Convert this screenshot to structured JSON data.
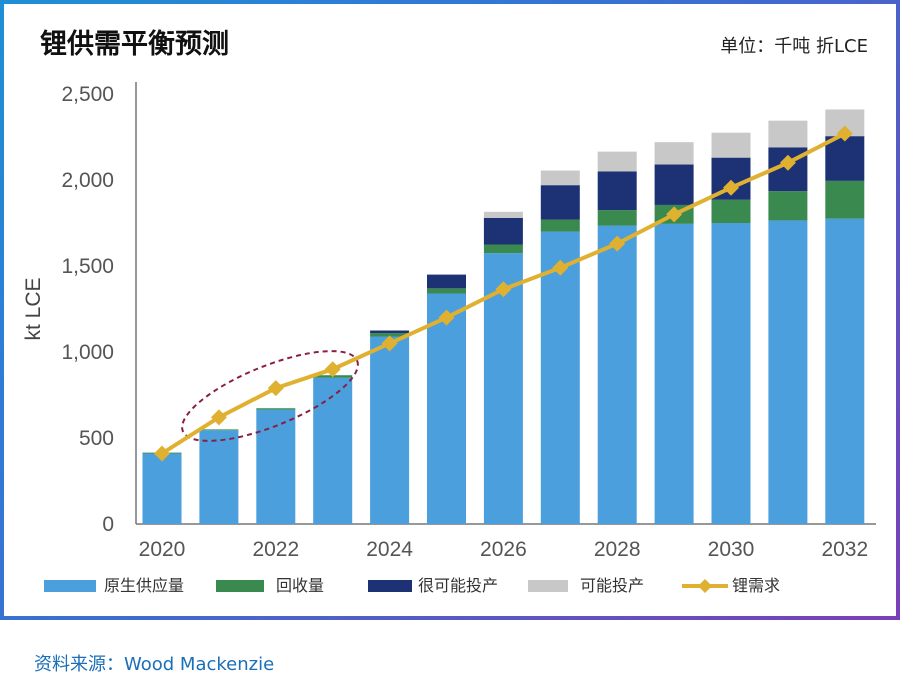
{
  "header": {
    "title": "锂供需平衡预测",
    "unit": "单位：千吨 折LCE"
  },
  "footer": {
    "source": "资料来源：Wood Mackenzie"
  },
  "colors": {
    "primary_supply": "#4a9fdc",
    "recycling": "#3a8a4f",
    "highly_probable": "#1c3274",
    "probable": "#c8c8c8",
    "demand": "#e0b030",
    "highlight_ellipse": "#8a2040"
  },
  "chart_data": {
    "type": "bar",
    "stacked": true,
    "title": "锂供需平衡预测",
    "ylabel": "kt LCE",
    "xlabel": "",
    "ylim": [
      0,
      2500
    ],
    "yticks": [
      0,
      500,
      1000,
      1500,
      2000,
      2500
    ],
    "ytick_labels": [
      "0",
      "500",
      "1,000",
      "1,500",
      "2,000",
      "2,500"
    ],
    "categories": [
      "2020",
      "2021",
      "2022",
      "2023",
      "2024",
      "2025",
      "2026",
      "2027",
      "2028",
      "2029",
      "2030",
      "2031",
      "2032"
    ],
    "xtick_labels": [
      "2020",
      "",
      "2022",
      "",
      "2024",
      "",
      "2026",
      "",
      "2028",
      "",
      "2030",
      "",
      "2032"
    ],
    "grid": false,
    "legend_position": "bottom",
    "series": [
      {
        "name": "原生供应量",
        "kind": "bar",
        "values": [
          410,
          545,
          665,
          850,
          1090,
          1340,
          1575,
          1700,
          1735,
          1745,
          1750,
          1765,
          1775
        ]
      },
      {
        "name": "回收量",
        "kind": "bar",
        "values": [
          5,
          5,
          8,
          15,
          20,
          30,
          50,
          70,
          90,
          110,
          135,
          170,
          220
        ]
      },
      {
        "name": "很可能投产",
        "kind": "bar",
        "values": [
          0,
          0,
          0,
          0,
          15,
          80,
          155,
          200,
          225,
          235,
          245,
          255,
          260
        ]
      },
      {
        "name": "可能投产",
        "kind": "bar",
        "values": [
          0,
          0,
          0,
          0,
          0,
          0,
          35,
          85,
          115,
          130,
          145,
          155,
          155
        ]
      },
      {
        "name": "锂需求",
        "kind": "line",
        "values": [
          410,
          620,
          790,
          900,
          1050,
          1200,
          1365,
          1490,
          1630,
          1800,
          1955,
          2100,
          2270
        ]
      }
    ]
  }
}
